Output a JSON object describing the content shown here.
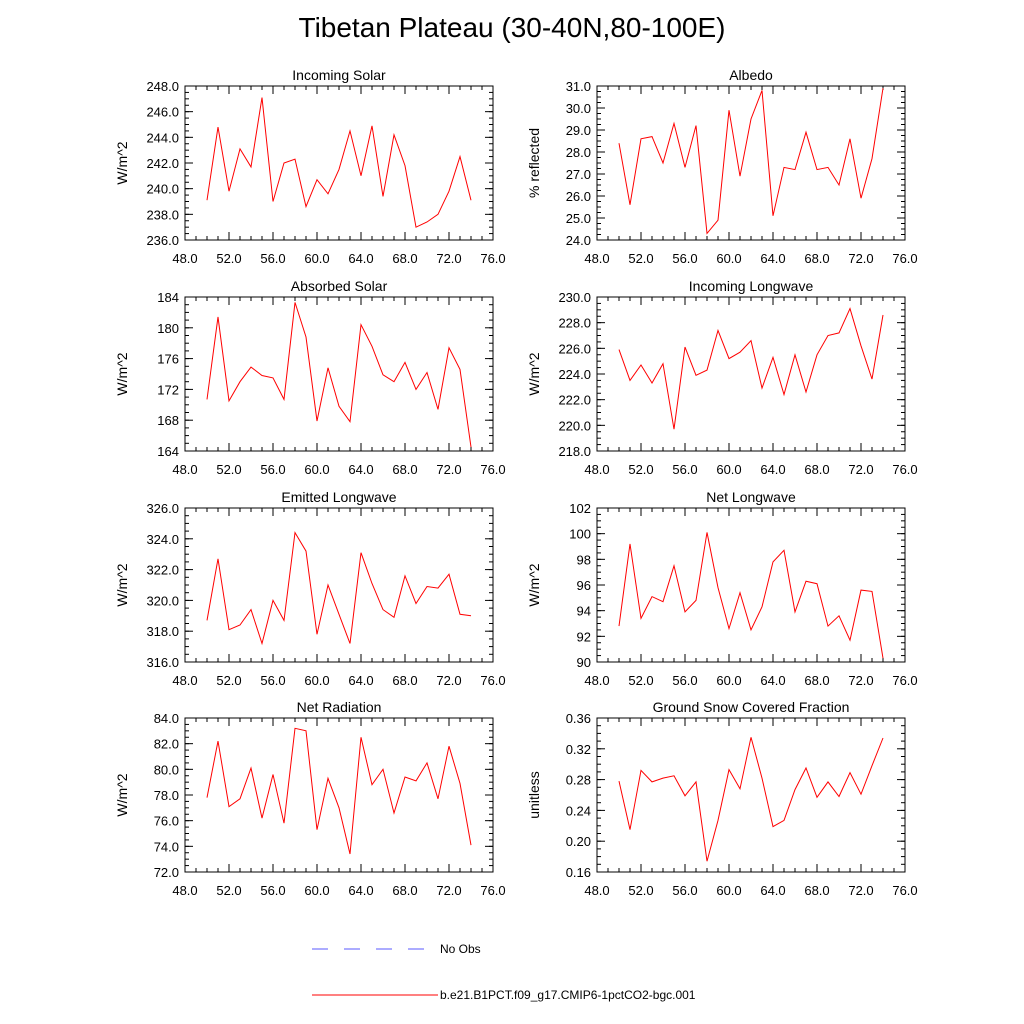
{
  "title": "Tibetan Plateau (30-40N,80-100E)",
  "colors": {
    "model": "#ff0000",
    "obs": "#5a5aff",
    "axis": "#000000"
  },
  "legend": [
    {
      "label": "No Obs",
      "style": "dashed",
      "color": "#5a5aff"
    },
    {
      "label": "b.e21.B1PCT.f09_g17.CMIP6-1pctCO2-bgc.001",
      "style": "solid",
      "color": "#ff0000"
    }
  ],
  "chart_data": [
    {
      "type": "line",
      "title": "Incoming Solar",
      "ylabel": "W/m^2",
      "xlim": [
        48,
        76
      ],
      "ylim": [
        236,
        248
      ],
      "xticks": [
        48,
        52,
        56,
        60,
        64,
        68,
        72,
        76
      ],
      "xdec": 1,
      "yticks": [
        236,
        238,
        240,
        242,
        244,
        246,
        248
      ],
      "ydec": 1,
      "x": [
        50,
        51,
        52,
        53,
        54,
        55,
        56,
        57,
        58,
        59,
        60,
        61,
        62,
        63,
        64,
        65,
        66,
        67,
        68,
        69,
        70,
        71,
        72,
        73,
        74
      ],
      "series": [
        {
          "values": [
            239.1,
            244.8,
            239.8,
            243.1,
            241.7,
            247.1,
            239.0,
            242.0,
            242.3,
            238.6,
            240.7,
            239.6,
            241.5,
            244.5,
            241.0,
            244.9,
            239.4,
            244.2,
            241.8,
            237.0,
            237.4,
            238.0,
            239.8,
            242.5,
            239.1
          ]
        }
      ]
    },
    {
      "type": "line",
      "title": "Albedo",
      "ylabel": "% reflected",
      "xlim": [
        48,
        76
      ],
      "ylim": [
        24,
        31
      ],
      "xticks": [
        48,
        52,
        56,
        60,
        64,
        68,
        72,
        76
      ],
      "xdec": 1,
      "yticks": [
        24,
        25,
        26,
        27,
        28,
        29,
        30,
        31
      ],
      "ydec": 1,
      "x": [
        50,
        51,
        52,
        53,
        54,
        55,
        56,
        57,
        58,
        59,
        60,
        61,
        62,
        63,
        64,
        65,
        66,
        67,
        68,
        69,
        70,
        71,
        72,
        73,
        74
      ],
      "series": [
        {
          "values": [
            28.4,
            25.6,
            28.6,
            28.7,
            27.5,
            29.3,
            27.3,
            29.2,
            24.3,
            24.9,
            29.9,
            26.9,
            29.5,
            30.8,
            25.1,
            27.3,
            27.2,
            28.9,
            27.2,
            27.3,
            26.5,
            28.6,
            25.9,
            27.7,
            30.9
          ]
        }
      ]
    },
    {
      "type": "line",
      "title": "Absorbed Solar",
      "ylabel": "W/m^2",
      "xlim": [
        48,
        76
      ],
      "ylim": [
        164,
        184
      ],
      "xticks": [
        48,
        52,
        56,
        60,
        64,
        68,
        72,
        76
      ],
      "xdec": 1,
      "yticks": [
        164,
        168,
        172,
        176,
        180,
        184
      ],
      "ydec": 0,
      "x": [
        50,
        51,
        52,
        53,
        54,
        55,
        56,
        57,
        58,
        59,
        60,
        61,
        62,
        63,
        64,
        65,
        66,
        67,
        68,
        69,
        70,
        71,
        72,
        73,
        74
      ],
      "series": [
        {
          "values": [
            170.7,
            181.4,
            170.5,
            173.0,
            174.9,
            173.8,
            173.5,
            170.7,
            183.3,
            178.8,
            167.9,
            174.8,
            169.8,
            167.8,
            180.4,
            177.6,
            173.9,
            173.0,
            175.5,
            172.0,
            174.2,
            169.4,
            177.4,
            174.6,
            164.5
          ]
        }
      ]
    },
    {
      "type": "line",
      "title": "Incoming Longwave",
      "ylabel": "W/m^2",
      "xlim": [
        48,
        76
      ],
      "ylim": [
        218,
        230
      ],
      "xticks": [
        48,
        52,
        56,
        60,
        64,
        68,
        72,
        76
      ],
      "xdec": 1,
      "yticks": [
        218,
        220,
        222,
        224,
        226,
        228,
        230
      ],
      "ydec": 1,
      "x": [
        50,
        51,
        52,
        53,
        54,
        55,
        56,
        57,
        58,
        59,
        60,
        61,
        62,
        63,
        64,
        65,
        66,
        67,
        68,
        69,
        70,
        71,
        72,
        73,
        74
      ],
      "series": [
        {
          "values": [
            225.9,
            223.5,
            224.7,
            223.3,
            224.8,
            219.7,
            226.1,
            223.9,
            224.3,
            227.4,
            225.2,
            225.7,
            226.6,
            222.9,
            225.3,
            222.4,
            225.5,
            222.6,
            225.5,
            227.0,
            227.2,
            229.1,
            226.2,
            223.6,
            228.6
          ]
        }
      ]
    },
    {
      "type": "line",
      "title": "Emitted Longwave",
      "ylabel": "W/m^2",
      "xlim": [
        48,
        76
      ],
      "ylim": [
        316,
        326
      ],
      "xticks": [
        48,
        52,
        56,
        60,
        64,
        68,
        72,
        76
      ],
      "xdec": 1,
      "yticks": [
        316,
        318,
        320,
        322,
        324,
        326
      ],
      "ydec": 1,
      "x": [
        50,
        51,
        52,
        53,
        54,
        55,
        56,
        57,
        58,
        59,
        60,
        61,
        62,
        63,
        64,
        65,
        66,
        67,
        68,
        69,
        70,
        71,
        72,
        73,
        74
      ],
      "series": [
        {
          "values": [
            318.7,
            322.7,
            318.1,
            318.4,
            319.4,
            317.2,
            320.0,
            318.7,
            324.4,
            323.2,
            317.8,
            321.0,
            319.1,
            317.2,
            323.1,
            321.1,
            319.4,
            318.9,
            321.6,
            319.8,
            320.9,
            320.8,
            321.7,
            319.1,
            319.0
          ]
        }
      ]
    },
    {
      "type": "line",
      "title": "Net Longwave",
      "ylabel": "W/m^2",
      "xlim": [
        48,
        76
      ],
      "ylim": [
        90,
        102
      ],
      "xticks": [
        48,
        52,
        56,
        60,
        64,
        68,
        72,
        76
      ],
      "xdec": 1,
      "yticks": [
        90,
        92,
        94,
        96,
        98,
        100,
        102
      ],
      "ydec": 0,
      "x": [
        50,
        51,
        52,
        53,
        54,
        55,
        56,
        57,
        58,
        59,
        60,
        61,
        62,
        63,
        64,
        65,
        66,
        67,
        68,
        69,
        70,
        71,
        72,
        73,
        74
      ],
      "series": [
        {
          "values": [
            92.8,
            99.2,
            93.4,
            95.1,
            94.7,
            97.5,
            93.9,
            94.8,
            100.1,
            95.8,
            92.6,
            95.4,
            92.5,
            94.3,
            97.8,
            98.7,
            93.9,
            96.3,
            96.1,
            92.8,
            93.6,
            91.7,
            95.6,
            95.5,
            90.3
          ]
        }
      ]
    },
    {
      "type": "line",
      "title": "Net Radiation",
      "ylabel": "W/m^2",
      "xlim": [
        48,
        76
      ],
      "ylim": [
        72,
        84
      ],
      "xticks": [
        48,
        52,
        56,
        60,
        64,
        68,
        72,
        76
      ],
      "xdec": 1,
      "yticks": [
        72,
        74,
        76,
        78,
        80,
        82,
        84
      ],
      "ydec": 1,
      "x": [
        50,
        51,
        52,
        53,
        54,
        55,
        56,
        57,
        58,
        59,
        60,
        61,
        62,
        63,
        64,
        65,
        66,
        67,
        68,
        69,
        70,
        71,
        72,
        73,
        74
      ],
      "series": [
        {
          "values": [
            77.8,
            82.2,
            77.1,
            77.7,
            80.1,
            76.2,
            79.6,
            75.8,
            83.2,
            83.0,
            75.3,
            79.3,
            77.0,
            73.4,
            82.5,
            78.8,
            80.0,
            76.6,
            79.4,
            79.1,
            80.5,
            77.7,
            81.8,
            78.9,
            74.1
          ]
        }
      ]
    },
    {
      "type": "line",
      "title": "Ground Snow Covered Fraction",
      "ylabel": "unitless",
      "xlim": [
        48,
        76
      ],
      "ylim": [
        0.16,
        0.36
      ],
      "xticks": [
        48,
        52,
        56,
        60,
        64,
        68,
        72,
        76
      ],
      "xdec": 1,
      "yticks": [
        0.16,
        0.2,
        0.24,
        0.28,
        0.32,
        0.36
      ],
      "ydec": 2,
      "x": [
        50,
        51,
        52,
        53,
        54,
        55,
        56,
        57,
        58,
        59,
        60,
        61,
        62,
        63,
        64,
        65,
        66,
        67,
        68,
        69,
        70,
        71,
        72,
        73,
        74
      ],
      "series": [
        {
          "values": [
            0.278,
            0.215,
            0.292,
            0.277,
            0.282,
            0.285,
            0.259,
            0.277,
            0.174,
            0.227,
            0.293,
            0.268,
            0.335,
            0.282,
            0.219,
            0.227,
            0.267,
            0.295,
            0.257,
            0.277,
            0.258,
            0.289,
            0.261,
            0.298,
            0.334
          ]
        }
      ]
    }
  ]
}
